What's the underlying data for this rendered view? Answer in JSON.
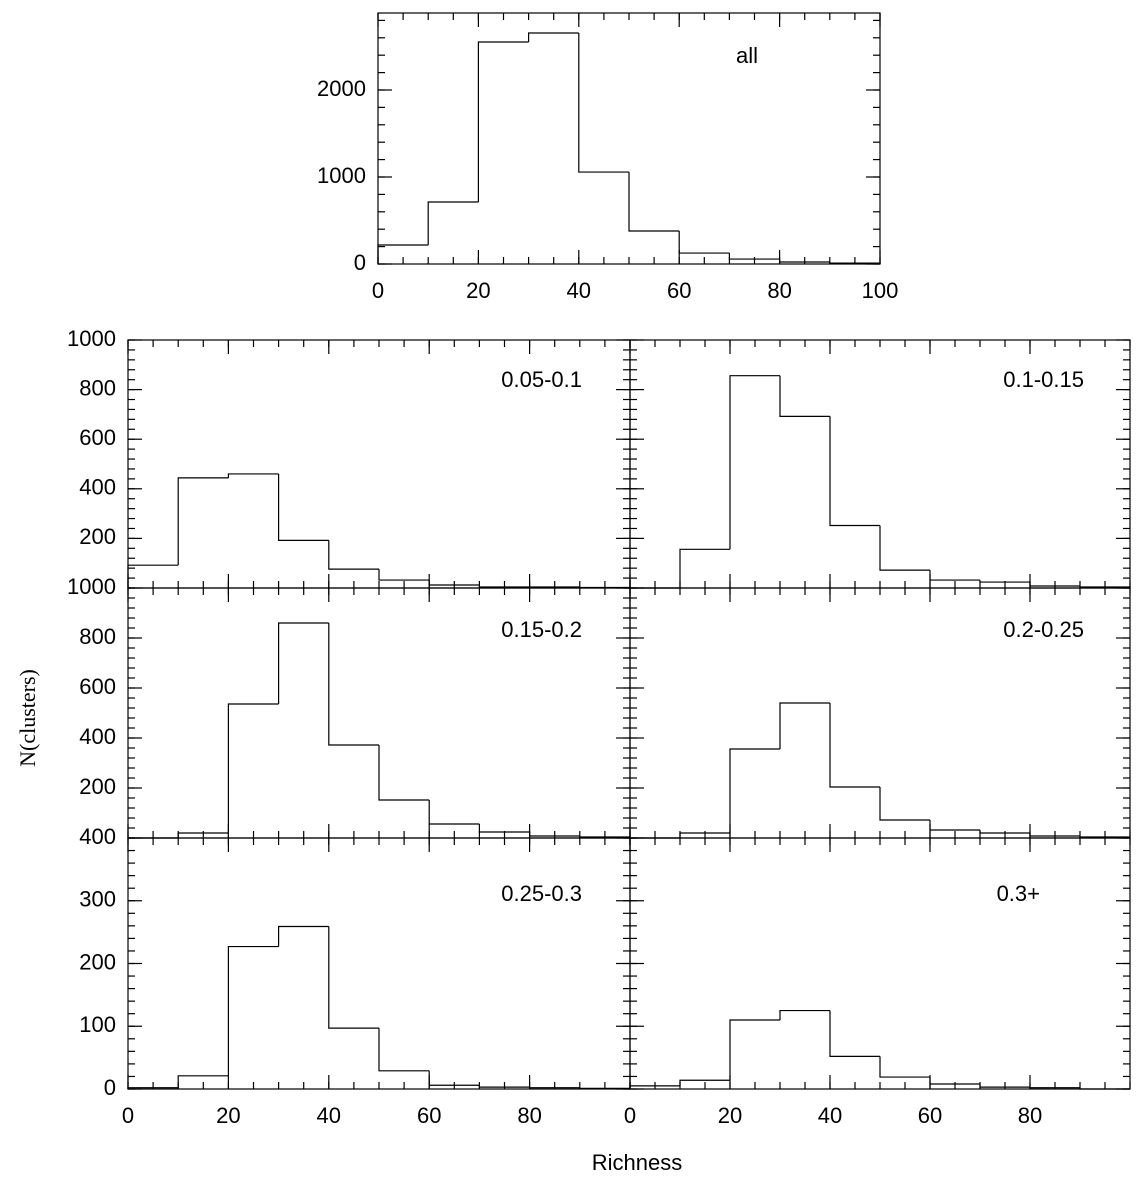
{
  "x_label": "Richness",
  "y_label": "N(clusters)",
  "chart_data": [
    {
      "type": "histogram",
      "label": "all",
      "bins": [
        0,
        10,
        20,
        30,
        40,
        50,
        60,
        70,
        80,
        90,
        100
      ],
      "values": [
        218,
        713,
        2552,
        2655,
        1057,
        379,
        126,
        57,
        23,
        11
      ],
      "xlim": [
        0,
        100
      ],
      "xticks": [
        0,
        20,
        40,
        60,
        80,
        100
      ],
      "ylim": [
        0,
        2885
      ],
      "yticks": [
        0,
        1000,
        2000
      ],
      "xtick_labels": true,
      "ytick_labels": true,
      "color": "#000000"
    },
    {
      "type": "histogram",
      "label": "0.05-0.1",
      "bins": [
        0,
        10,
        20,
        30,
        40,
        50,
        60,
        70,
        80,
        90,
        100
      ],
      "values": [
        92,
        444,
        460,
        192,
        76,
        32,
        12,
        4,
        4,
        2
      ],
      "xlim": [
        0,
        100
      ],
      "xticks": [
        0,
        20,
        40,
        60,
        80
      ],
      "ylim": [
        0,
        1000
      ],
      "yticks": [
        200,
        400,
        600,
        800,
        1000
      ],
      "xtick_labels": false,
      "ytick_labels": true,
      "color": "#000000"
    },
    {
      "type": "histogram",
      "label": "0.1-0.15",
      "bins": [
        0,
        10,
        20,
        30,
        40,
        50,
        60,
        70,
        80,
        90,
        100
      ],
      "values": [
        0,
        156,
        856,
        692,
        252,
        72,
        32,
        24,
        8,
        4
      ],
      "xlim": [
        0,
        100
      ],
      "xticks": [
        0,
        20,
        40,
        60,
        80
      ],
      "ylim": [
        0,
        1000
      ],
      "yticks": [
        200,
        400,
        600,
        800,
        1000
      ],
      "xtick_labels": false,
      "ytick_labels": false,
      "color": "#000000"
    },
    {
      "type": "histogram",
      "label": "0.15-0.2",
      "bins": [
        0,
        10,
        20,
        30,
        40,
        50,
        60,
        70,
        80,
        90,
        100
      ],
      "values": [
        0,
        20,
        536,
        860,
        372,
        152,
        56,
        24,
        8,
        4
      ],
      "xlim": [
        0,
        100
      ],
      "xticks": [
        0,
        20,
        40,
        60,
        80
      ],
      "ylim": [
        0,
        1000
      ],
      "yticks": [
        200,
        400,
        600,
        800,
        1000
      ],
      "xtick_labels": false,
      "ytick_labels": true,
      "color": "#000000"
    },
    {
      "type": "histogram",
      "label": "0.2-0.25",
      "bins": [
        0,
        10,
        20,
        30,
        40,
        50,
        60,
        70,
        80,
        90,
        100
      ],
      "values": [
        0,
        20,
        356,
        540,
        204,
        72,
        32,
        20,
        8,
        4
      ],
      "xlim": [
        0,
        100
      ],
      "xticks": [
        0,
        20,
        40,
        60,
        80
      ],
      "ylim": [
        0,
        1000
      ],
      "yticks": [
        200,
        400,
        600,
        800,
        1000
      ],
      "xtick_labels": false,
      "ytick_labels": false,
      "color": "#000000"
    },
    {
      "type": "histogram",
      "label": "0.25-0.3",
      "bins": [
        0,
        10,
        20,
        30,
        40,
        50,
        60,
        70,
        80,
        90,
        100
      ],
      "values": [
        2,
        21,
        227,
        259,
        97,
        29,
        6,
        3,
        2,
        1
      ],
      "xlim": [
        0,
        100
      ],
      "xticks": [
        0,
        20,
        40,
        60,
        80
      ],
      "ylim": [
        0,
        400
      ],
      "yticks": [
        0,
        100,
        200,
        300,
        400
      ],
      "xtick_labels": true,
      "ytick_labels": true,
      "color": "#000000"
    },
    {
      "type": "histogram",
      "label": "0.3+",
      "bins": [
        0,
        10,
        20,
        30,
        40,
        50,
        60,
        70,
        80,
        90,
        100
      ],
      "values": [
        5,
        14,
        110,
        125,
        52,
        19,
        8,
        3,
        2,
        0
      ],
      "xlim": [
        0,
        100
      ],
      "xticks": [
        0,
        20,
        40,
        60,
        80
      ],
      "ylim": [
        0,
        400
      ],
      "yticks": [
        0,
        100,
        200,
        300,
        400
      ],
      "xtick_labels": true,
      "ytick_labels": false,
      "color": "#000000"
    }
  ]
}
